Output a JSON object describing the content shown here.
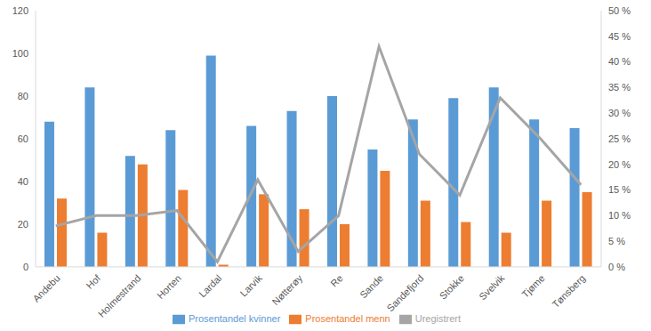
{
  "chart_data": {
    "type": "bar",
    "categories": [
      "Andebu",
      "Hof",
      "Holmestrand",
      "Horten",
      "Lardal",
      "Larvik",
      "Nøtterøy",
      "Re",
      "Sande",
      "Sandefjord",
      "Stokke",
      "Svelvik",
      "Tjøme",
      "Tønsberg"
    ],
    "series": [
      {
        "name": "Prosentandel kvinner",
        "type": "bar",
        "color": "#5b9bd5",
        "values": [
          68,
          84,
          52,
          64,
          99,
          66,
          73,
          80,
          55,
          69,
          79,
          84,
          69,
          65
        ]
      },
      {
        "name": "Prosentandel menn",
        "type": "bar",
        "color": "#ed7d31",
        "values": [
          32,
          16,
          48,
          36,
          1,
          34,
          27,
          20,
          45,
          31,
          21,
          16,
          31,
          35
        ]
      },
      {
        "name": "Uregistrert",
        "type": "line",
        "axis": "y2",
        "color": "#a5a5a5",
        "values": [
          8,
          10,
          10,
          11,
          1,
          17,
          3,
          10,
          43,
          22,
          14,
          33,
          25,
          16
        ]
      }
    ],
    "ylim": [
      0,
      120
    ],
    "yticks": [
      0,
      20,
      40,
      60,
      80,
      100,
      120
    ],
    "y2lim": [
      0,
      50
    ],
    "y2ticks": [
      {
        "value": 0,
        "label": "0 %"
      },
      {
        "value": 5,
        "label": "5 %"
      },
      {
        "value": 10,
        "label": "10 %"
      },
      {
        "value": 15,
        "label": "15 %"
      },
      {
        "value": 20,
        "label": "20 %"
      },
      {
        "value": 25,
        "label": "25 %"
      },
      {
        "value": 30,
        "label": "30 %"
      },
      {
        "value": 35,
        "label": "35 %"
      },
      {
        "value": 40,
        "label": "40 %"
      },
      {
        "value": 45,
        "label": "45 %"
      },
      {
        "value": 50,
        "label": "50 %"
      }
    ],
    "grid": false,
    "legend": "bottom"
  }
}
